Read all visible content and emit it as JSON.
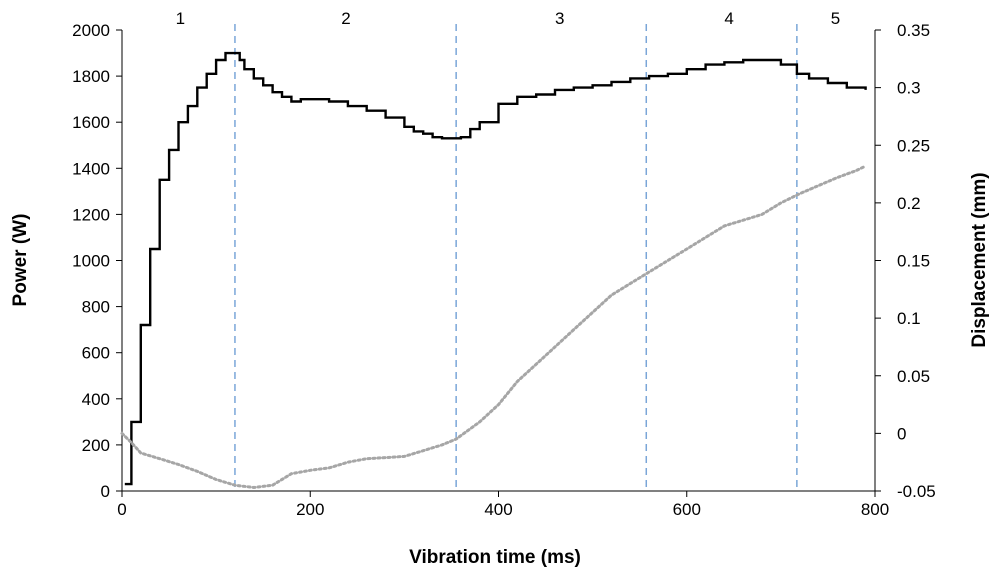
{
  "chart_data": {
    "type": "line",
    "title": "",
    "xlabel": "Vibration time (ms)",
    "ylabel": "Power (W)",
    "y2label": "Displacement (mm)",
    "xlim": [
      0,
      800
    ],
    "ylim": [
      0,
      2000
    ],
    "y2lim": [
      -0.05,
      0.35
    ],
    "x_ticks": [
      0,
      200,
      400,
      600,
      800
    ],
    "y_ticks": [
      0,
      200,
      400,
      600,
      800,
      1000,
      1200,
      1400,
      1600,
      1800,
      2000
    ],
    "y2_ticks": [
      -0.05,
      0,
      0.05,
      0.1,
      0.15,
      0.2,
      0.25,
      0.3,
      0.35
    ],
    "y2_tick_labels": [
      "-0.05",
      "0",
      "0.05",
      "0.1",
      "0.15",
      "0.2",
      "0.25",
      "0.3",
      "0.35"
    ],
    "grid": false,
    "legend": "none",
    "phase_boundaries": [
      120,
      355,
      557,
      717
    ],
    "phase_labels": [
      {
        "label": "1",
        "x": 62
      },
      {
        "label": "2",
        "x": 238
      },
      {
        "label": "3",
        "x": 465
      },
      {
        "label": "4",
        "x": 645
      },
      {
        "label": "5",
        "x": 758
      }
    ],
    "series": [
      {
        "axis": "left",
        "color": "#000000",
        "style": "solid",
        "x": [
          3,
          10,
          20,
          30,
          40,
          50,
          60,
          70,
          80,
          90,
          100,
          110,
          120,
          125,
          130,
          140,
          150,
          160,
          170,
          180,
          190,
          200,
          220,
          240,
          260,
          280,
          300,
          310,
          320,
          330,
          340,
          350,
          360,
          370,
          380,
          400,
          420,
          440,
          460,
          480,
          500,
          520,
          540,
          560,
          580,
          600,
          620,
          640,
          660,
          680,
          700,
          717,
          730,
          750,
          770,
          790
        ],
        "y": [
          30,
          300,
          720,
          1050,
          1350,
          1480,
          1600,
          1670,
          1750,
          1810,
          1870,
          1900,
          1900,
          1870,
          1830,
          1790,
          1760,
          1730,
          1710,
          1690,
          1700,
          1700,
          1690,
          1670,
          1650,
          1620,
          1580,
          1560,
          1550,
          1535,
          1530,
          1530,
          1535,
          1570,
          1600,
          1680,
          1710,
          1720,
          1740,
          1750,
          1760,
          1775,
          1790,
          1800,
          1810,
          1830,
          1850,
          1860,
          1870,
          1870,
          1850,
          1810,
          1790,
          1770,
          1750,
          1740
        ]
      },
      {
        "axis": "right",
        "color": "#a6a6a6",
        "style": "dotted",
        "x": [
          0,
          10,
          20,
          40,
          60,
          80,
          100,
          120,
          140,
          160,
          180,
          200,
          220,
          240,
          260,
          280,
          300,
          320,
          340,
          355,
          380,
          400,
          420,
          440,
          460,
          480,
          500,
          520,
          540,
          560,
          580,
          600,
          620,
          640,
          660,
          680,
          700,
          720,
          740,
          760,
          780,
          790
        ],
        "y": [
          0.0,
          -0.008,
          -0.017,
          -0.022,
          -0.027,
          -0.033,
          -0.04,
          -0.045,
          -0.047,
          -0.045,
          -0.035,
          -0.032,
          -0.03,
          -0.025,
          -0.022,
          -0.021,
          -0.02,
          -0.015,
          -0.01,
          -0.005,
          0.01,
          0.025,
          0.045,
          0.06,
          0.075,
          0.09,
          0.105,
          0.12,
          0.13,
          0.14,
          0.15,
          0.16,
          0.17,
          0.18,
          0.185,
          0.19,
          0.2,
          0.208,
          0.215,
          0.222,
          0.228,
          0.232
        ]
      }
    ]
  }
}
